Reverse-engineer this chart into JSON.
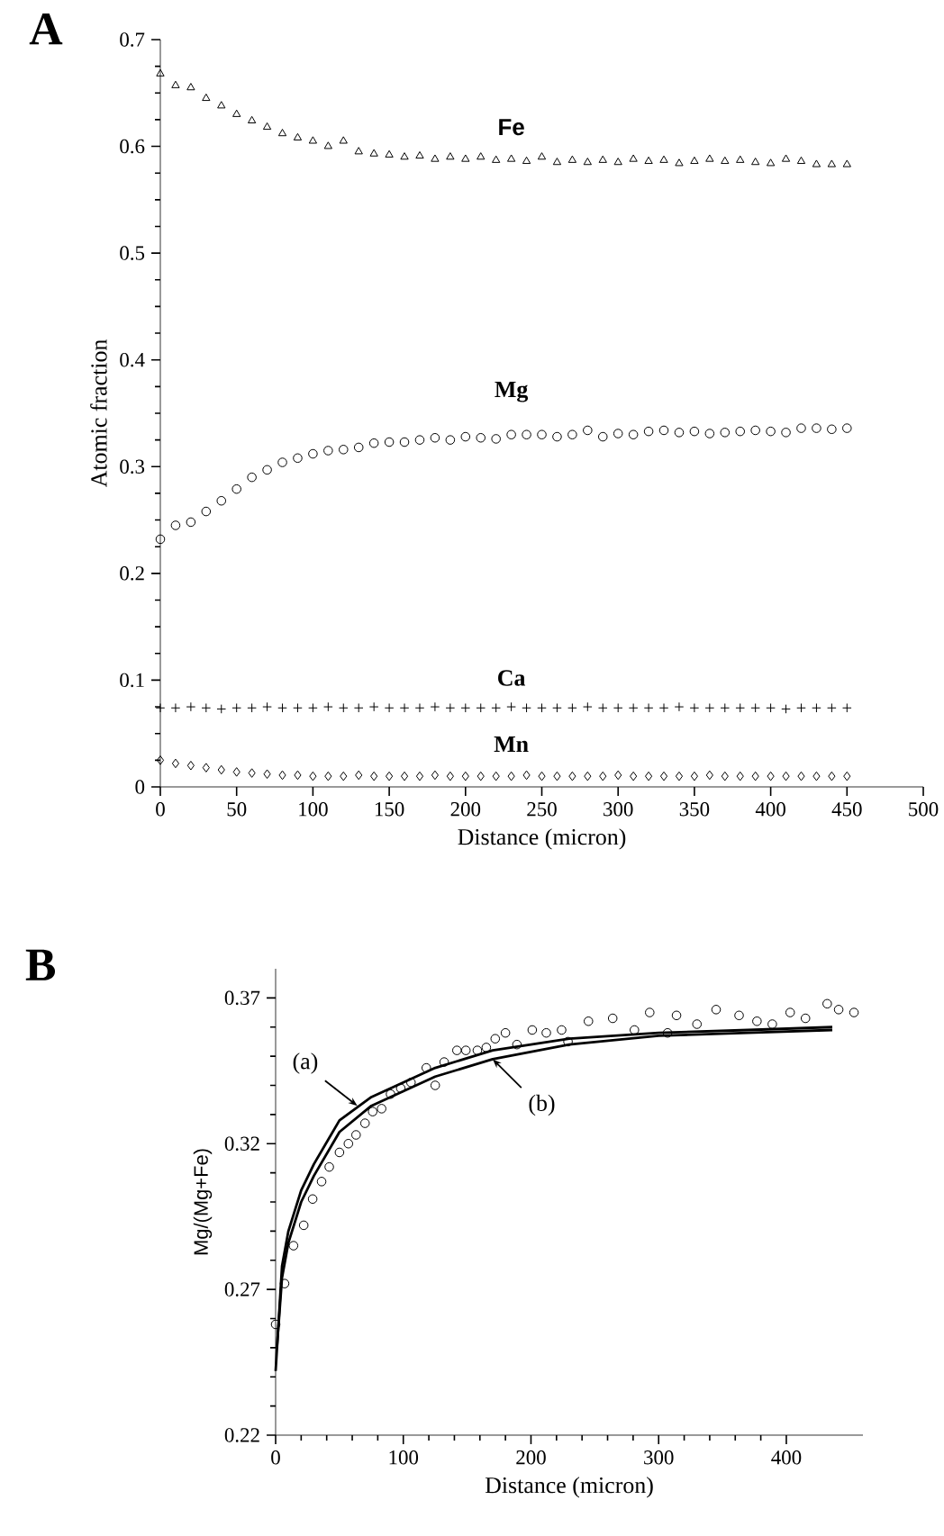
{
  "chart_data": [
    {
      "type": "scatter",
      "title": "A",
      "xlabel": "Distance (micron)",
      "ylabel": "Atomic fraction",
      "x": [
        0,
        10,
        20,
        30,
        40,
        50,
        60,
        70,
        80,
        90,
        100,
        110,
        120,
        130,
        140,
        150,
        160,
        170,
        180,
        190,
        200,
        210,
        220,
        230,
        240,
        250,
        260,
        270,
        280,
        290,
        300,
        310,
        320,
        330,
        340,
        350,
        360,
        370,
        380,
        390,
        400,
        410,
        420,
        430,
        440,
        450
      ],
      "series": [
        {
          "name": "Fe",
          "color": "#000000",
          "marker": "triangle",
          "values": [
            0.668,
            0.657,
            0.655,
            0.645,
            0.638,
            0.63,
            0.624,
            0.618,
            0.612,
            0.608,
            0.605,
            0.6,
            0.605,
            0.595,
            0.593,
            0.592,
            0.59,
            0.591,
            0.588,
            0.59,
            0.588,
            0.59,
            0.587,
            0.588,
            0.586,
            0.59,
            0.585,
            0.587,
            0.585,
            0.587,
            0.585,
            0.588,
            0.586,
            0.587,
            0.584,
            0.586,
            0.588,
            0.586,
            0.587,
            0.585,
            0.584,
            0.588,
            0.586,
            0.583,
            0.583,
            0.583
          ]
        },
        {
          "name": "Mg",
          "color": "#000000",
          "marker": "circle",
          "values": [
            0.232,
            0.245,
            0.248,
            0.258,
            0.268,
            0.279,
            0.29,
            0.297,
            0.304,
            0.308,
            0.312,
            0.315,
            0.316,
            0.318,
            0.322,
            0.323,
            0.323,
            0.325,
            0.327,
            0.325,
            0.328,
            0.327,
            0.326,
            0.33,
            0.33,
            0.33,
            0.328,
            0.33,
            0.334,
            0.328,
            0.331,
            0.33,
            0.333,
            0.334,
            0.332,
            0.333,
            0.331,
            0.332,
            0.333,
            0.334,
            0.333,
            0.332,
            0.336,
            0.336,
            0.335,
            0.336
          ]
        },
        {
          "name": "Ca",
          "color": "#000000",
          "marker": "cross",
          "values": [
            0.074,
            0.074,
            0.075,
            0.074,
            0.073,
            0.074,
            0.074,
            0.075,
            0.074,
            0.074,
            0.074,
            0.075,
            0.074,
            0.074,
            0.075,
            0.074,
            0.074,
            0.074,
            0.075,
            0.074,
            0.074,
            0.074,
            0.074,
            0.075,
            0.074,
            0.074,
            0.074,
            0.074,
            0.075,
            0.074,
            0.074,
            0.074,
            0.074,
            0.074,
            0.075,
            0.074,
            0.074,
            0.074,
            0.074,
            0.074,
            0.074,
            0.073,
            0.074,
            0.074,
            0.074,
            0.074
          ]
        },
        {
          "name": "Mn",
          "color": "#000000",
          "marker": "diamond",
          "values": [
            0.025,
            0.022,
            0.02,
            0.018,
            0.016,
            0.014,
            0.013,
            0.012,
            0.011,
            0.011,
            0.01,
            0.01,
            0.01,
            0.011,
            0.01,
            0.01,
            0.01,
            0.01,
            0.011,
            0.01,
            0.01,
            0.01,
            0.01,
            0.01,
            0.011,
            0.01,
            0.01,
            0.01,
            0.01,
            0.01,
            0.011,
            0.01,
            0.01,
            0.01,
            0.01,
            0.01,
            0.011,
            0.01,
            0.01,
            0.01,
            0.01,
            0.01,
            0.01,
            0.01,
            0.01,
            0.01
          ]
        }
      ],
      "xlim": [
        0,
        500
      ],
      "ylim": [
        0,
        0.7
      ],
      "xticks": [
        0,
        50,
        100,
        150,
        200,
        250,
        300,
        350,
        400,
        450,
        500
      ],
      "yticks": [
        0,
        0.1,
        0.2,
        0.3,
        0.4,
        0.5,
        0.6,
        0.7
      ],
      "grid": false
    },
    {
      "type": "scatter",
      "title": "B",
      "xlabel": "Distance (micron)",
      "ylabel": "Mg/(Mg+Fe)",
      "series": [
        {
          "color": "#000000",
          "marker": "circle",
          "x": [
            0,
            7,
            14,
            22,
            29,
            36,
            42,
            50,
            57,
            63,
            70,
            76,
            83,
            90,
            98,
            106,
            118,
            125,
            132,
            142,
            149,
            158,
            165,
            172,
            180,
            189,
            201,
            212,
            224,
            229,
            245,
            264,
            281,
            293,
            307,
            314,
            330,
            345,
            363,
            377,
            389,
            403,
            415,
            432,
            441,
            453
          ],
          "values": [
            0.258,
            0.272,
            0.285,
            0.292,
            0.301,
            0.307,
            0.312,
            0.317,
            0.32,
            0.323,
            0.327,
            0.331,
            0.332,
            0.337,
            0.339,
            0.341,
            0.346,
            0.34,
            0.348,
            0.352,
            0.352,
            0.352,
            0.353,
            0.356,
            0.358,
            0.354,
            0.359,
            0.358,
            0.359,
            0.355,
            0.362,
            0.363,
            0.359,
            0.365,
            0.358,
            0.364,
            0.361,
            0.366,
            0.364,
            0.362,
            0.361,
            0.365,
            0.363,
            0.368,
            0.366,
            0.365
          ]
        },
        {
          "type": "line",
          "color": "#000000",
          "marker": "none",
          "x": [
            0,
            5,
            10,
            20,
            30,
            50,
            75,
            100,
            125,
            170,
            230,
            300,
            370,
            436
          ],
          "values": [
            0.242,
            0.278,
            0.29,
            0.304,
            0.313,
            0.328,
            0.336,
            0.341,
            0.346,
            0.352,
            0.356,
            0.358,
            0.359,
            0.36
          ]
        },
        {
          "type": "line",
          "color": "#000000",
          "marker": "none",
          "x": [
            1,
            5,
            10,
            20,
            30,
            50,
            75,
            100,
            125,
            170,
            230,
            300,
            370,
            436
          ],
          "values": [
            0.25,
            0.274,
            0.286,
            0.3,
            0.309,
            0.324,
            0.333,
            0.338,
            0.343,
            0.349,
            0.354,
            0.357,
            0.358,
            0.359
          ]
        }
      ],
      "annotations": [
        {
          "text": "(a)",
          "x": 64,
          "y": 0.333
        },
        {
          "text": "(b)",
          "x": 170,
          "y": 0.349
        }
      ],
      "xlim": [
        0,
        460
      ],
      "ylim": [
        0.22,
        0.38
      ],
      "xticks": [
        0,
        100,
        200,
        300,
        400
      ],
      "yticks": [
        0.22,
        0.27,
        0.32,
        0.37
      ],
      "grid": false
    }
  ]
}
